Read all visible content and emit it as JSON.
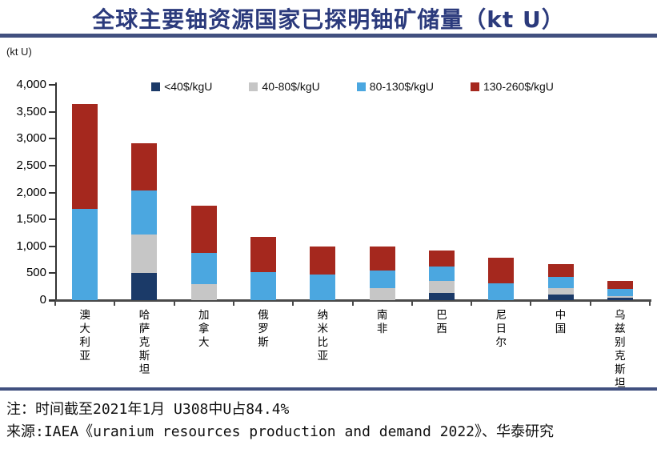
{
  "title": {
    "text": "全球主要铀资源国家已探明铀矿储量（kt U）"
  },
  "colors": {
    "title_text": "#2B3A7C",
    "rule": "#41507F",
    "axis_line": "#4a4a4a",
    "y_axis_line": "#333333",
    "tick": "#333333"
  },
  "chart_data": {
    "type": "bar",
    "stacked": true,
    "title": "全球主要铀资源国家已探明铀矿储量（kt U）",
    "unit_label": "(kt U)",
    "ylabel": "kt U",
    "ylim": [
      0,
      4000
    ],
    "ytick_step": 500,
    "ytick_labels": [
      "0",
      "500",
      "1,000",
      "1,500",
      "2,000",
      "2,500",
      "3,000",
      "3,500",
      "4,000"
    ],
    "grid": false,
    "legend_position": "top",
    "categories": [
      "澳大利亚",
      "哈萨克斯坦",
      "加拿大",
      "俄罗斯",
      "纳米比亚",
      "南非",
      "巴西",
      "尼日尔",
      "中国",
      "乌兹别克斯坦"
    ],
    "series": [
      {
        "name": "<40$/kgU",
        "color": "#1B3A68",
        "values": [
          0,
          500,
          0,
          0,
          0,
          0,
          140,
          0,
          100,
          50
        ]
      },
      {
        "name": "40-80$/kgU",
        "color": "#C6C6C6",
        "values": [
          0,
          720,
          290,
          0,
          0,
          220,
          210,
          0,
          130,
          30
        ]
      },
      {
        "name": "80-130$/kgU",
        "color": "#4BA7E0",
        "values": [
          1700,
          810,
          580,
          520,
          480,
          330,
          280,
          310,
          195,
          130
        ]
      },
      {
        "name": "130-260$/kgU",
        "color": "#A5281E",
        "values": [
          1950,
          890,
          880,
          650,
          520,
          440,
          290,
          480,
          245,
          140
        ]
      }
    ],
    "totals": [
      3650,
      2920,
      1750,
      1170,
      1000,
      990,
      920,
      790,
      670,
      350
    ]
  },
  "footer": {
    "note": "注：时间截至2021年1月 U308中U占84.4%",
    "source": "来源:IAEA《uranium resources production and demand 2022》、华泰研究"
  }
}
